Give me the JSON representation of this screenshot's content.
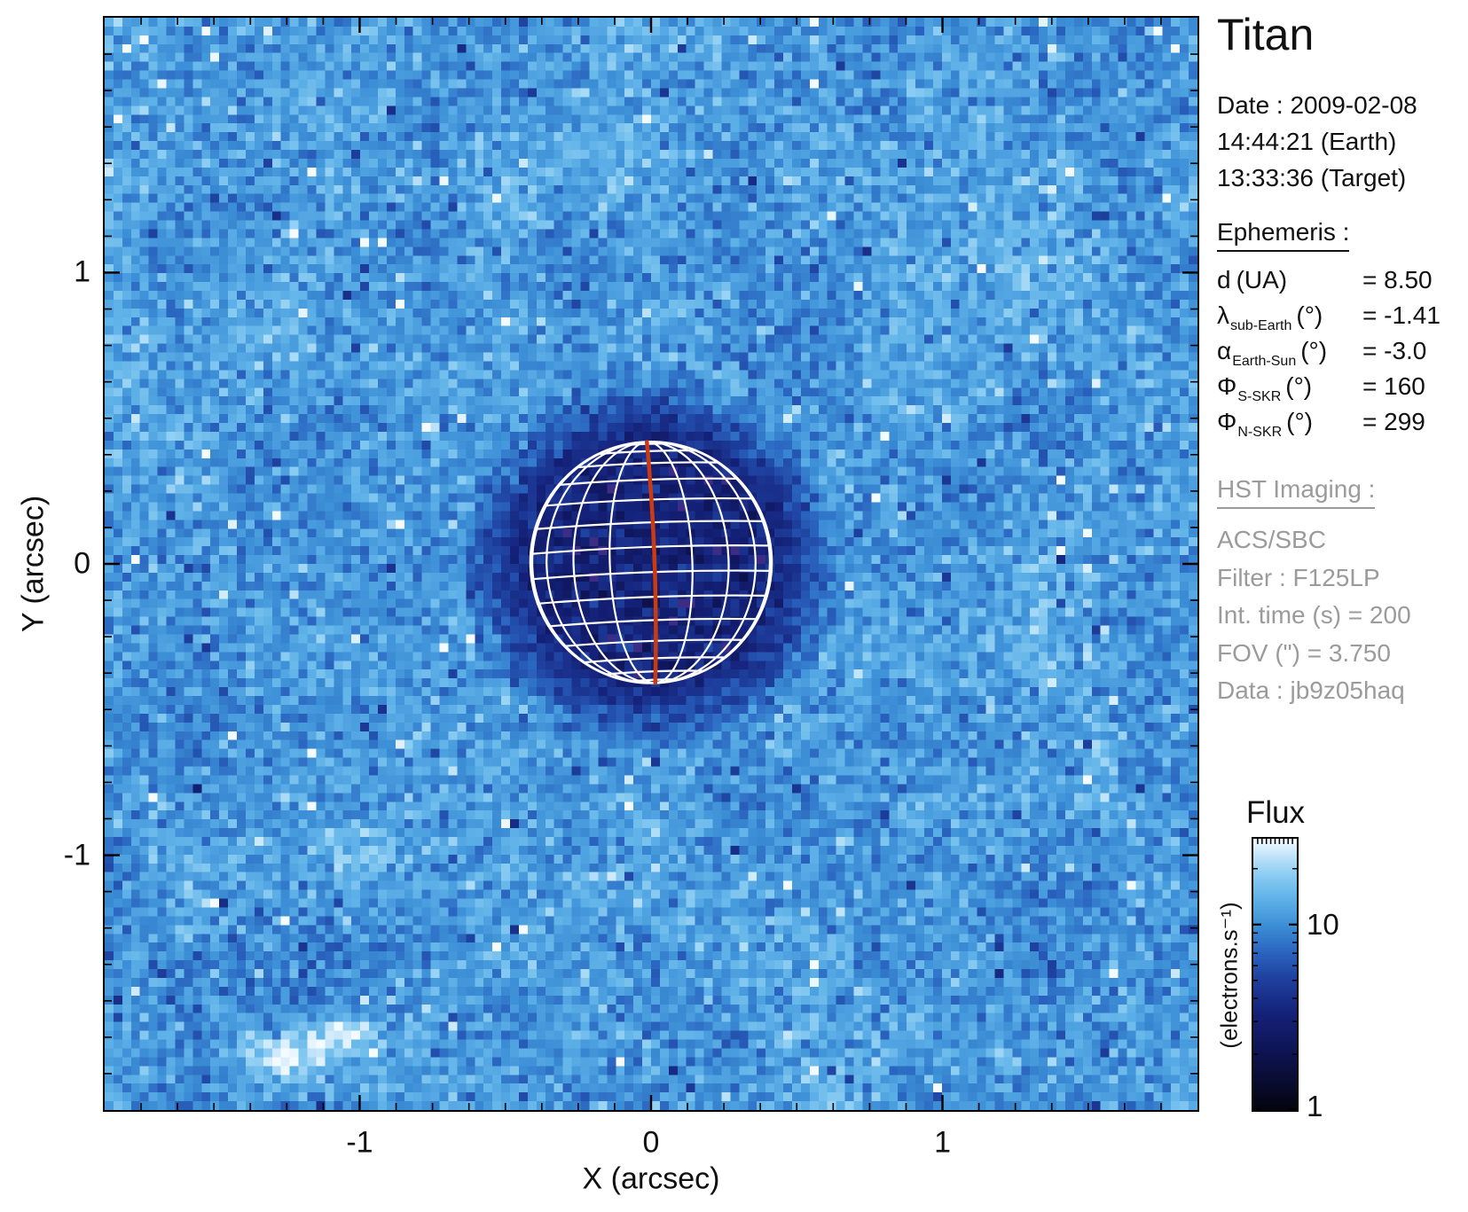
{
  "info": {
    "title": "Titan",
    "date_line": "Date : 2009-02-08",
    "time_earth": "14:44:21 (Earth)",
    "time_target": "13:33:36 (Target)"
  },
  "ephemeris": {
    "heading": "Ephemeris :",
    "rows": [
      {
        "symbol": "d",
        "sub": "",
        "unit": "(UA)",
        "value": "= 8.50"
      },
      {
        "symbol": "λ",
        "sub": "sub-Earth",
        "unit": "(°)",
        "value": "= -1.41"
      },
      {
        "symbol": "α",
        "sub": "Earth-Sun",
        "unit": "(°)",
        "value": "= -3.0"
      },
      {
        "symbol": "Φ",
        "sub": "S-SKR",
        "unit": "(°)",
        "value": "= 160"
      },
      {
        "symbol": "Φ",
        "sub": "N-SKR",
        "unit": "(°)",
        "value": "= 299"
      }
    ]
  },
  "hst": {
    "heading": "HST Imaging :",
    "lines": [
      "ACS/SBC",
      "Filter : F125LP",
      "Int. time (s) = 200",
      "FOV (\") = 3.750",
      "Data : jb9z05haq"
    ],
    "text_color": "#9b9b9b"
  },
  "colorbar": {
    "title": "Flux",
    "unit": "(electrons.s⁻¹)",
    "scale": "log",
    "min": 1,
    "max": 29,
    "tick_values": [
      10,
      1
    ],
    "tick_labels": [
      "10",
      "1"
    ],
    "minor_ticks": [
      2,
      3,
      4,
      5,
      6,
      7,
      8,
      9,
      20
    ]
  },
  "axes": {
    "x": {
      "label": "X (arcsec)",
      "ticks": [
        -1,
        0,
        1
      ],
      "range": [
        -1.875,
        1.875
      ],
      "minor_step": 0.125
    },
    "y": {
      "label": "Y (arcsec)",
      "ticks": [
        1,
        0,
        -1
      ],
      "range": [
        -1.875,
        1.875
      ],
      "minor_step": 0.125
    }
  },
  "chart_data": {
    "type": "heatmap",
    "title": "HST ACS/SBC F125LP image of Titan, 2009-02-08 14:44:21 UT",
    "xlabel": "X (arcsec)",
    "ylabel": "Y (arcsec)",
    "xlim": [
      -1.875,
      1.875
    ],
    "ylim": [
      -1.875,
      1.875
    ],
    "fov_arcsec": 3.75,
    "pixels": 124,
    "flux_units": "electrons/s",
    "flux_scale": "log",
    "flux_min": 1,
    "flux_max": 29,
    "background_flux_median": 11,
    "background_noise_dex": 0.1,
    "disk": {
      "center_x": 0.0,
      "center_y": 0.005,
      "radius_arcsec": 0.414,
      "disk_flux": 3.2,
      "halo_edge_flux": 5.5,
      "halo_outer_arcsec": 0.67
    },
    "globe_grid": {
      "center_x_arcsec": 0.0,
      "center_y_arcsec": 0.005,
      "radius_px": 136,
      "lat_step_deg": 12,
      "lon_step_deg": 20,
      "sub_earth_lat_deg": -1.41,
      "pole_tilt_deg": -2,
      "grid_color": "#ffffff",
      "central_meridian_color": "#cc3a10"
    },
    "artifacts": [
      {
        "x": -1.28,
        "y": -1.7,
        "sx": 0.1,
        "sy": 0.05,
        "amp_dex": 0.4,
        "note": "bright streak lower-left"
      },
      {
        "x": -1.1,
        "y": -1.62,
        "sx": 0.1,
        "sy": 0.05,
        "amp_dex": 0.34,
        "note": "bright streak lower-left"
      },
      {
        "x": -1.32,
        "y": -1.45,
        "sx": 0.2,
        "sy": 0.14,
        "amp_dex": -0.09,
        "note": "dark smooth smudge"
      },
      {
        "x": -1.02,
        "y": -0.98,
        "sx": 0.1,
        "sy": 0.06,
        "amp_dex": 0.14,
        "note": "light patch"
      },
      {
        "x": 1.55,
        "y": -0.68,
        "sx": 0.05,
        "sy": 0.1,
        "amp_dex": 0.16,
        "note": "light patch right edge"
      },
      {
        "x": 1.41,
        "y": 1.33,
        "sx": 0.09,
        "sy": 0.05,
        "amp_dex": 0.11,
        "note": "light patch upper right"
      }
    ],
    "colormap_stops": [
      [
        0.0,
        "#04040f"
      ],
      [
        0.1,
        "#090b30"
      ],
      [
        0.22,
        "#0e1455"
      ],
      [
        0.35,
        "#142178"
      ],
      [
        0.48,
        "#1e3f9e"
      ],
      [
        0.58,
        "#2a64bf"
      ],
      [
        0.68,
        "#3c8fd6"
      ],
      [
        0.78,
        "#5fb2e8"
      ],
      [
        0.87,
        "#8ccdf2"
      ],
      [
        0.94,
        "#c3e5f9"
      ],
      [
        1.0,
        "#f4fbff"
      ]
    ],
    "legend_position": "right colorbar",
    "grid": false
  }
}
